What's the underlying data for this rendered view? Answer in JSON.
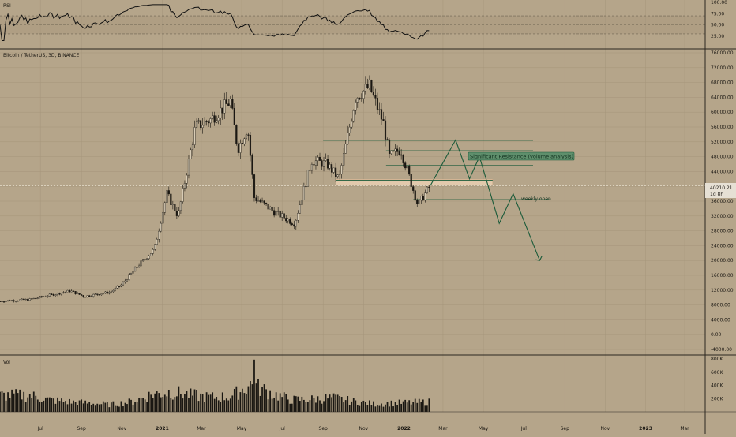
{
  "colors": {
    "background": "#b5a58a",
    "candle": "#1a1712",
    "line": "#111111",
    "grid": "#a5957a",
    "divider": "#2a2620",
    "annotation": "#1b5b3a",
    "annotation_box": "#5f8f6c",
    "zone": "#e7cdb0",
    "price_tag": "#e6e0d4"
  },
  "header": {
    "rsi_label": "RSI",
    "symbol_label": "Bitcoin / TetherUS, 3D, BINANCE",
    "vol_label": "Vol"
  },
  "price_tag": {
    "price": "40210.21",
    "countdown": "1d 8h"
  },
  "annotations": {
    "resistance": "Significant Resistance (volume analysis)",
    "weekly_open": "weekly open"
  },
  "chart_data": [
    {
      "type": "line",
      "name": "RSI",
      "ylim": [
        0,
        100
      ],
      "y_ticks": [
        "100.00",
        "75.00",
        "50.00",
        "25.00"
      ],
      "levels": [
        70,
        50,
        30
      ],
      "x": [
        "2020-06",
        "2020-07",
        "2020-08",
        "2020-09",
        "2020-10",
        "2020-11",
        "2020-12",
        "2021-01",
        "2021-02",
        "2021-03",
        "2021-04",
        "2021-05",
        "2021-06",
        "2021-07",
        "2021-08",
        "2021-09",
        "2021-10",
        "2021-11",
        "2021-12",
        "2022-01",
        "2022-02"
      ],
      "values": [
        55,
        50,
        58,
        56,
        52,
        66,
        80,
        85,
        82,
        72,
        62,
        35,
        42,
        40,
        58,
        62,
        72,
        64,
        45,
        32,
        36
      ]
    },
    {
      "type": "candlestick",
      "title": "Bitcoin / TetherUS, 3D, BINANCE",
      "ylim": [
        -4000,
        76000
      ],
      "y_ticks": [
        "76000.00",
        "72000.00",
        "68000.00",
        "64000.00",
        "60000.00",
        "56000.00",
        "52000.00",
        "48000.00",
        "44000.00",
        "40000.00",
        "36000.00",
        "32000.00",
        "28000.00",
        "24000.00",
        "20000.00",
        "16000.00",
        "12000.00",
        "8000.00",
        "4000.00",
        "0.00",
        "-4000.00"
      ],
      "x_ticks": [
        "Jul",
        "Sep",
        "Nov",
        "2021",
        "Mar",
        "May",
        "Jul",
        "Sep",
        "Nov",
        "2022",
        "Mar",
        "May",
        "Jul",
        "Sep",
        "Nov",
        "2023",
        "Mar"
      ],
      "close_path": [
        [
          "2020-05-01",
          9000
        ],
        [
          "2020-06-15",
          9500
        ],
        [
          "2020-07-25",
          11000
        ],
        [
          "2020-08-15",
          11800
        ],
        [
          "2020-09-05",
          10300
        ],
        [
          "2020-10-15",
          11500
        ],
        [
          "2020-11-01",
          13500
        ],
        [
          "2020-11-25",
          18500
        ],
        [
          "2020-12-20",
          23000
        ],
        [
          "2021-01-08",
          38000
        ],
        [
          "2021-01-25",
          32000
        ],
        [
          "2021-02-20",
          56000
        ],
        [
          "2021-03-15",
          58000
        ],
        [
          "2021-04-14",
          63000
        ],
        [
          "2021-04-25",
          50000
        ],
        [
          "2021-05-10",
          56000
        ],
        [
          "2021-05-20",
          37000
        ],
        [
          "2021-06-20",
          33000
        ],
        [
          "2021-07-20",
          30000
        ],
        [
          "2021-08-15",
          47000
        ],
        [
          "2021-09-07",
          46000
        ],
        [
          "2021-09-25",
          42000
        ],
        [
          "2021-10-20",
          64000
        ],
        [
          "2021-11-10",
          67000
        ],
        [
          "2021-12-01",
          57000
        ],
        [
          "2021-12-10",
          48000
        ],
        [
          "2021-12-27",
          50000
        ],
        [
          "2022-01-10",
          42000
        ],
        [
          "2022-01-22",
          35000
        ],
        [
          "2022-02-10",
          40210
        ]
      ],
      "current_price": 40210.21,
      "levels": [
        52400,
        49600,
        45600,
        41600,
        36400
      ],
      "projection": [
        [
          "2022-02-10",
          40210
        ],
        [
          "2022-03-20",
          52500
        ],
        [
          "2022-04-10",
          42000
        ],
        [
          "2022-04-25",
          48000
        ],
        [
          "2022-05-25",
          30000
        ],
        [
          "2022-06-15",
          38000
        ],
        [
          "2022-07-25",
          20000
        ]
      ]
    },
    {
      "type": "bar",
      "name": "Vol",
      "ylim": [
        0,
        800000
      ],
      "y_ticks": [
        "800K",
        "600K",
        "400K",
        "200K"
      ],
      "x": [
        "2020-06",
        "2020-07",
        "2020-08",
        "2020-09",
        "2020-10",
        "2020-11",
        "2020-12",
        "2021-01",
        "2021-02",
        "2021-03",
        "2021-04",
        "2021-05",
        "2021-06",
        "2021-07",
        "2021-08",
        "2021-09",
        "2021-10",
        "2021-11",
        "2021-12",
        "2022-01",
        "2022-02"
      ],
      "values": [
        250000,
        180000,
        150000,
        130000,
        110000,
        150000,
        260000,
        300000,
        250000,
        220000,
        230000,
        420000,
        280000,
        180000,
        190000,
        210000,
        160000,
        120000,
        130000,
        140000,
        150000
      ],
      "peak": {
        "x": "2021-05-19",
        "value": 790000
      }
    }
  ]
}
